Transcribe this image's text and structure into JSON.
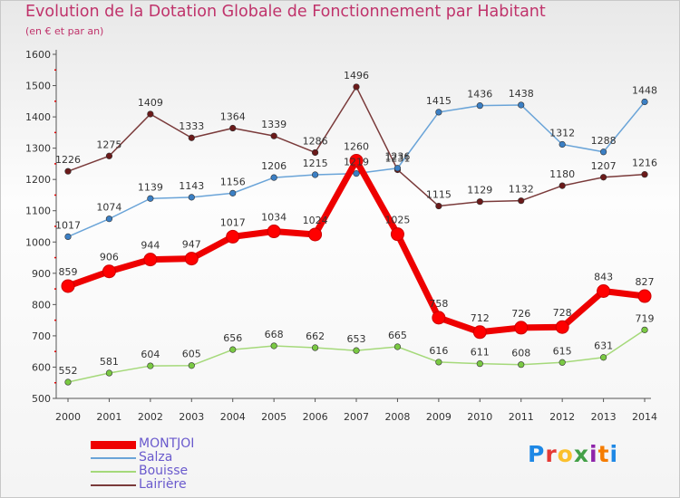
{
  "title": "Evolution de la Dotation Globale de Fonctionnement par Habitant",
  "subtitle": "(en € et par an)",
  "logo": {
    "letters": [
      "P",
      "r",
      "o",
      "x",
      "i",
      "t",
      "i"
    ],
    "colors": [
      "#1e88e5",
      "#e53935",
      "#fbc02d",
      "#43a047",
      "#8e24aa",
      "#f57c00",
      "#1e88e5"
    ]
  },
  "chart_data": {
    "type": "line",
    "x": [
      "2000",
      "2001",
      "2002",
      "2003",
      "2004",
      "2005",
      "2006",
      "2007",
      "2008",
      "2009",
      "2010",
      "2011",
      "2012",
      "2013",
      "2014"
    ],
    "ylim": [
      500,
      1600
    ],
    "yticks": [
      500,
      600,
      700,
      800,
      900,
      1000,
      1100,
      1200,
      1300,
      1400,
      1500,
      1600
    ],
    "grid": false,
    "legend_position": "bottom-left",
    "series": [
      {
        "name": "MONTJOI",
        "color": "#ff0000",
        "line_color": "#ee0000",
        "width": 7,
        "marker": 7,
        "values": [
          859,
          906,
          944,
          947,
          1017,
          1034,
          1024,
          1260,
          1025,
          758,
          712,
          726,
          728,
          843,
          827
        ]
      },
      {
        "name": "Salza",
        "color": "#3b7fc4",
        "line_color": "#6aa4d8",
        "width": 1.5,
        "marker": 3.3,
        "values": [
          1017,
          1074,
          1139,
          1143,
          1156,
          1206,
          1215,
          1219,
          1236,
          1415,
          1436,
          1438,
          1312,
          1288,
          1448
        ]
      },
      {
        "name": "Bouisse",
        "color": "#7ac943",
        "line_color": "#a5d97a",
        "width": 1.5,
        "marker": 3.3,
        "values": [
          552,
          581,
          604,
          605,
          656,
          668,
          662,
          653,
          665,
          616,
          611,
          608,
          615,
          631,
          719
        ]
      },
      {
        "name": "Lairière",
        "color": "#6b1a1a",
        "line_color": "#7a3a3a",
        "width": 1.5,
        "marker": 3.3,
        "values": [
          1226,
          1275,
          1409,
          1333,
          1364,
          1339,
          1286,
          1496,
          1231,
          1115,
          1129,
          1132,
          1180,
          1207,
          1216
        ]
      }
    ]
  }
}
